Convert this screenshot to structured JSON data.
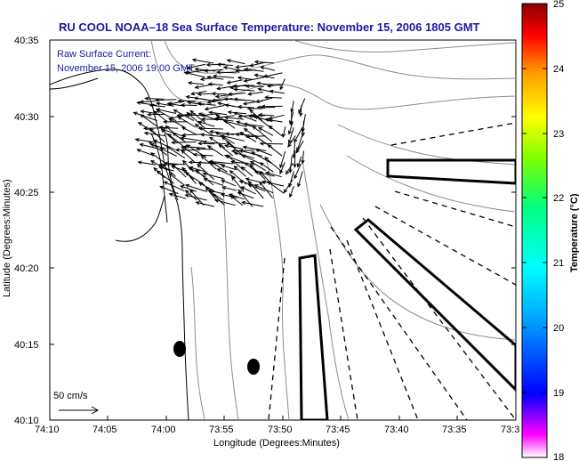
{
  "title": "RU COOL  NOAA–18  Sea Surface Temperature:  November 15, 2006 1805 GMT",
  "annotation": {
    "line1": "Raw Surface Current:",
    "line2": "November 15, 2006 19:00 GMT"
  },
  "x_axis": {
    "label": "Longitude (Degrees:Minutes)",
    "ticks": [
      "74:10",
      "74:05",
      "74:00",
      "73:55",
      "73:50",
      "73:45",
      "73:40",
      "73:35",
      "73:3"
    ]
  },
  "y_axis": {
    "label": "Latitude (Degrees:Minutes)",
    "ticks": [
      "40:35",
      "40:30",
      "40:25",
      "40:20",
      "40:15",
      "40:10"
    ]
  },
  "scale_label": "50 cm/s",
  "colorbar": {
    "label": "Temperature (°C)",
    "ticks": [
      "25",
      "24",
      "23",
      "22",
      "21",
      "20",
      "19",
      "18"
    ],
    "colors": [
      "#ff00ff",
      "#0000ff",
      "#00a0ff",
      "#00ffff",
      "#00ff80",
      "#80ff00",
      "#ffff00",
      "#ff9900",
      "#ff0000",
      "#880000"
    ]
  }
}
